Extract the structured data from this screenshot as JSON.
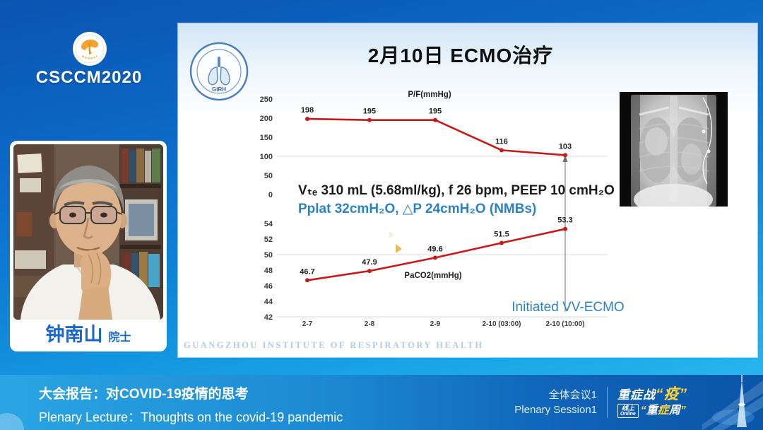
{
  "sidebar": {
    "conference": "CSCCM2020",
    "cma_logo": "china-medical-association-emblem",
    "speaker": {
      "name": "钟南山",
      "title": "院士"
    }
  },
  "slide": {
    "title": "2月10日 ECMO治疗",
    "girh_logo_text": "GIRH",
    "watermark": "GUANGZHOU INSTITUTE OF RESPIRATORY HEALTH",
    "vent_settings_line1": "Vₜₑ 310 mL (5.68ml/kg), f 26 bpm, PEEP 10 cmH₂O",
    "vent_settings_line2": "Pplat 32cmH₂O, △P 24cmH₂O (NMBs)"
  },
  "chart_data": [
    {
      "type": "line",
      "title": "P/F(mmHg)",
      "categories": [
        "2-7",
        "2-8",
        "2-9",
        "2-10 (03:00)",
        "2-10 (10:00)"
      ],
      "values": [
        198,
        195,
        195,
        116,
        103
      ],
      "yticks": [
        250,
        200,
        150,
        100,
        50,
        0
      ],
      "ylim": [
        0,
        250
      ],
      "line_color": "#c61a1a",
      "grid": "single faint line at 100",
      "legend": "none"
    },
    {
      "type": "line",
      "title": "PaCO2(mmHg)",
      "categories": [
        "2-7",
        "2-8",
        "2-9",
        "2-10 (03:00)",
        "2-10 (10:00)"
      ],
      "values": [
        46.7,
        47.9,
        49.6,
        51.5,
        53.3
      ],
      "yticks": [
        54,
        52,
        50,
        48,
        46,
        44,
        42
      ],
      "ylim": [
        42,
        54
      ],
      "line_color": "#c61a1a",
      "annotation": "Initiated VV-ECMO",
      "grid": "faint lines at 50 and 42",
      "legend": "none"
    }
  ],
  "footer": {
    "title_zh": "大会报告：对COVID-19疫情的思考",
    "title_en": "Plenary Lecture：Thoughts on the covid-19 pandemic",
    "session_zh": "全体会议1",
    "session_en": "Plenary Session1",
    "logo": {
      "line1_prefix": "重症战",
      "line1_quoted": "“疫”",
      "box_zh": "线上",
      "box_en": "Online",
      "line2_q1": "“",
      "line2_c1": "重",
      "line2_c2": "症",
      "line2_c3": "周",
      "line2_q2": "”"
    }
  },
  "colors": {
    "accent_red": "#c61a1a",
    "accent_blue": "#2e82c4",
    "name_blue": "#1a66c9",
    "footer_yellow": "#ffd23e",
    "sidebar_blue": "#0f82d6"
  }
}
